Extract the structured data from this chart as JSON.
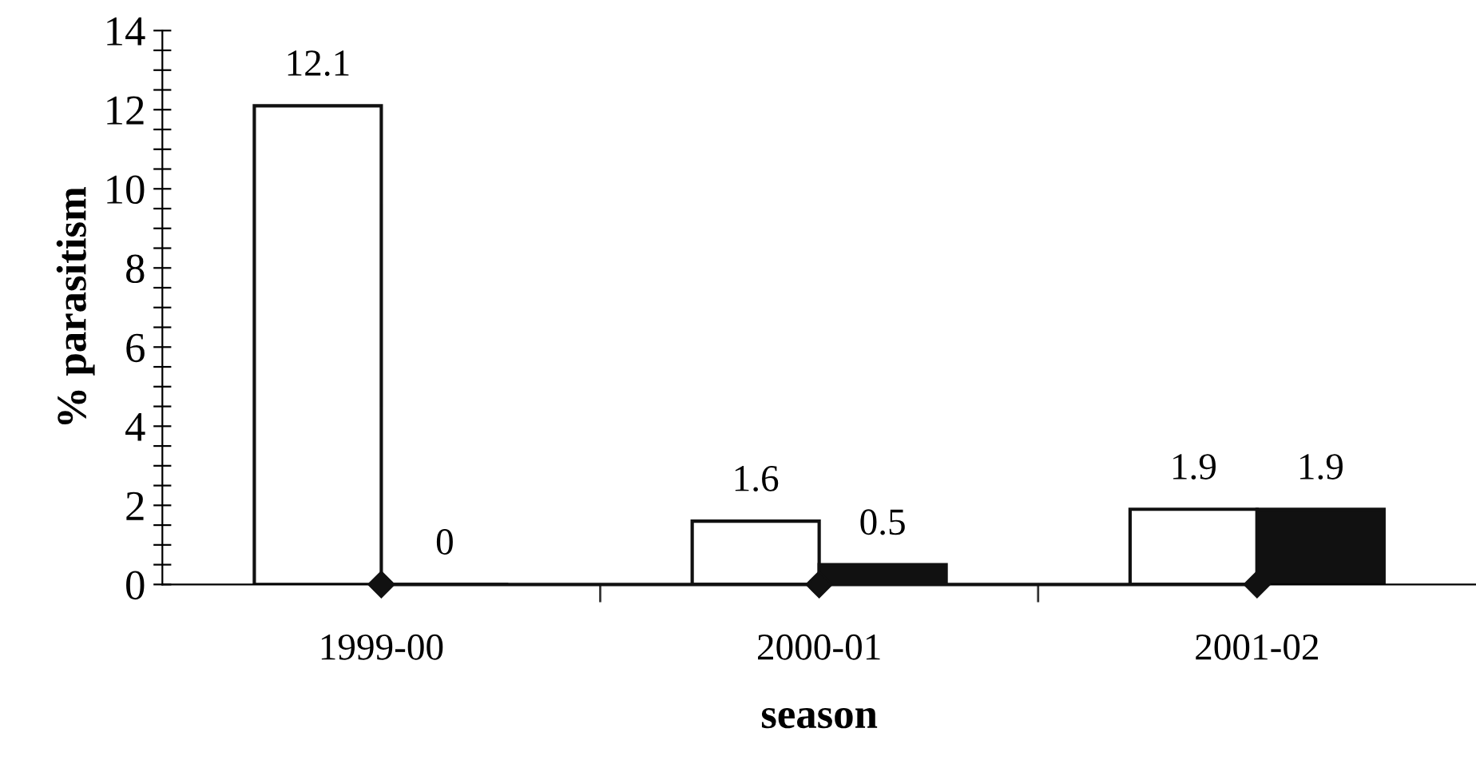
{
  "chart_data": {
    "type": "bar",
    "xlabel": "season",
    "ylabel": "% parasitism",
    "categories": [
      "1999-00",
      "2000-01",
      "2001-02"
    ],
    "series": [
      {
        "color": "#ffffff",
        "values": [
          12.1,
          1.6,
          1.9
        ],
        "value_labels": [
          "12.1",
          "1.6",
          "1.9"
        ]
      },
      {
        "color": "#111111",
        "values": [
          0,
          0.5,
          1.9
        ],
        "value_labels": [
          "0",
          "0.5",
          "1.9"
        ]
      },
      {
        "type": "line",
        "color": "#111111",
        "values": [
          0,
          0,
          0
        ],
        "marker": "diamond"
      }
    ],
    "ylim": [
      0,
      14
    ],
    "yticks": [
      0,
      {
        "value": 0.5,
        "label": null
      },
      {
        "value": 1,
        "label": null
      },
      {
        "value": 1.5,
        "label": null
      },
      2,
      {
        "value": 2.5,
        "label": null
      },
      {
        "value": 3,
        "label": null
      },
      {
        "value": 3.5,
        "label": null
      },
      4,
      {
        "value": 4.5,
        "label": null
      },
      {
        "value": 5,
        "label": null
      },
      {
        "value": 5.5,
        "label": null
      },
      6,
      {
        "value": 6.5,
        "label": null
      },
      {
        "value": 7,
        "label": null
      },
      {
        "value": 7.5,
        "label": null
      },
      8,
      {
        "value": 8.5,
        "label": null
      },
      {
        "value": 9,
        "label": null
      },
      {
        "value": 9.5,
        "label": null
      },
      10,
      {
        "value": 10.5,
        "label": null
      },
      {
        "value": 11,
        "label": null
      },
      {
        "value": 11.5,
        "label": null
      },
      12,
      {
        "value": 12.5,
        "label": null
      },
      {
        "value": 13,
        "label": null
      },
      {
        "value": 13.5,
        "label": null
      },
      14
    ],
    "grid": false,
    "legend": false
  }
}
